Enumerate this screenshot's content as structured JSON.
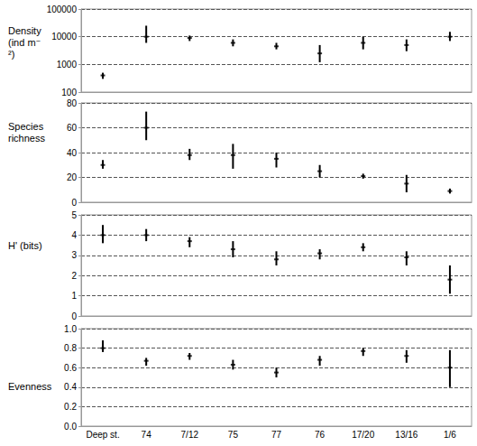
{
  "chart_data": [
    {
      "type": "scatter",
      "ylabel": "Density (ind m⁻²)",
      "log": "y",
      "grid": true,
      "tick_labels": "y",
      "marker": "dash",
      "color": "#000000",
      "categories": [
        "Deep st.",
        "74",
        "7/12",
        "75",
        "77",
        "76",
        "17/20",
        "13/16",
        "1/6"
      ],
      "values": [
        400,
        10000,
        9000,
        6000,
        4500,
        2500,
        6000,
        5000,
        10000
      ],
      "low": [
        300,
        6000,
        7000,
        4500,
        3500,
        1200,
        3500,
        3000,
        7000
      ],
      "high": [
        500,
        25000,
        11000,
        8000,
        6000,
        5000,
        10000,
        8000,
        15000
      ],
      "ylim": [
        100,
        100000
      ],
      "yticks": [
        100,
        1000,
        10000,
        100000
      ]
    },
    {
      "type": "scatter",
      "ylabel": "Species richness",
      "grid": true,
      "tick_labels": "y",
      "marker": "dash",
      "color": "#000000",
      "categories": [
        "Deep st.",
        "74",
        "7/12",
        "75",
        "77",
        "76",
        "17/20",
        "13/16",
        "1/6"
      ],
      "values": [
        30,
        60,
        38,
        38,
        35,
        25,
        21,
        15,
        9
      ],
      "low": [
        27,
        50,
        34,
        27,
        28,
        20,
        19,
        8,
        7
      ],
      "high": [
        34,
        73,
        43,
        47,
        40,
        30,
        23,
        22,
        11
      ],
      "ylim": [
        0,
        80
      ],
      "yticks": [
        0,
        20,
        40,
        60,
        80
      ]
    },
    {
      "type": "scatter",
      "ylabel": "H' (bits)",
      "grid": true,
      "tick_labels": "y",
      "marker": "dash",
      "color": "#000000",
      "categories": [
        "Deep st.",
        "74",
        "7/12",
        "75",
        "77",
        "76",
        "17/20",
        "13/16",
        "1/6"
      ],
      "values": [
        4.0,
        4.0,
        3.7,
        3.3,
        2.8,
        3.1,
        3.4,
        2.9,
        1.8
      ],
      "low": [
        3.6,
        3.7,
        3.4,
        2.9,
        2.5,
        2.8,
        3.2,
        2.5,
        1.1
      ],
      "high": [
        4.5,
        4.3,
        3.9,
        3.7,
        3.2,
        3.3,
        3.6,
        3.2,
        2.5
      ],
      "ylim": [
        0,
        5
      ],
      "yticks": [
        0,
        1,
        2,
        3,
        4,
        5
      ]
    },
    {
      "type": "scatter",
      "ylabel": "Evenness",
      "grid": true,
      "marker": "dash",
      "color": "#000000",
      "categories": [
        "Deep st.",
        "74",
        "7/12",
        "75",
        "77",
        "76",
        "17/20",
        "13/16",
        "1/6"
      ],
      "values": [
        0.8,
        0.67,
        0.72,
        0.63,
        0.55,
        0.68,
        0.77,
        0.72,
        0.6
      ],
      "low": [
        0.76,
        0.62,
        0.68,
        0.58,
        0.5,
        0.62,
        0.72,
        0.65,
        0.4
      ],
      "high": [
        0.88,
        0.7,
        0.75,
        0.68,
        0.6,
        0.72,
        0.8,
        0.78,
        0.78
      ],
      "ylim": [
        0,
        1
      ],
      "yticks": [
        {
          "value": 0,
          "label": "0.0"
        },
        {
          "value": 0.2,
          "label": "0.2"
        },
        {
          "value": 0.4,
          "label": "0.4"
        },
        {
          "value": 0.6,
          "label": "0.6"
        },
        {
          "value": 0.8,
          "label": "0.8"
        },
        {
          "value": 1,
          "label": "1.0"
        }
      ]
    }
  ]
}
